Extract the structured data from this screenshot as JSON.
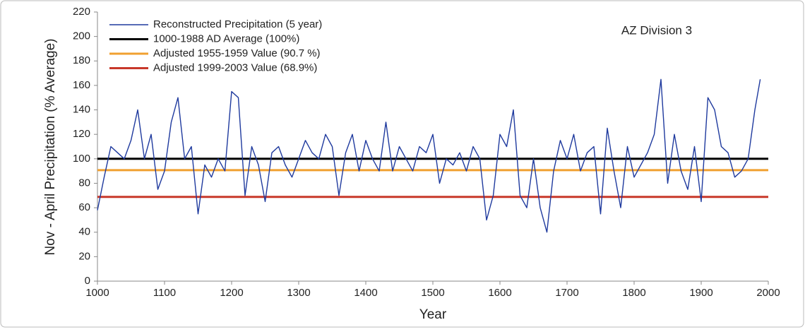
{
  "chart_data": {
    "type": "line",
    "annotation": "AZ Division 3",
    "xlabel": "Year",
    "ylabel": "Nov - April Precipitation (% Average)",
    "xlim": [
      1000,
      2000
    ],
    "xticks": [
      1000,
      1100,
      1200,
      1300,
      1400,
      1500,
      1600,
      1700,
      1800,
      1900,
      2000
    ],
    "ylim": [
      0,
      220
    ],
    "yticks": [
      0,
      20,
      40,
      60,
      80,
      100,
      120,
      140,
      160,
      180,
      200,
      220
    ],
    "legend": "upper left",
    "series": [
      {
        "name": "Reconstructed Precipitation (5 year)",
        "color": "#1f3a9e",
        "width": 1.4,
        "x": [
          1000,
          1010,
          1020,
          1030,
          1040,
          1050,
          1060,
          1070,
          1080,
          1090,
          1100,
          1110,
          1120,
          1130,
          1140,
          1150,
          1160,
          1170,
          1180,
          1190,
          1200,
          1210,
          1220,
          1230,
          1240,
          1250,
          1260,
          1270,
          1280,
          1290,
          1300,
          1310,
          1320,
          1330,
          1340,
          1350,
          1360,
          1370,
          1380,
          1390,
          1400,
          1410,
          1420,
          1430,
          1440,
          1450,
          1460,
          1470,
          1480,
          1490,
          1500,
          1510,
          1520,
          1530,
          1540,
          1550,
          1560,
          1570,
          1580,
          1590,
          1600,
          1610,
          1620,
          1630,
          1640,
          1650,
          1660,
          1670,
          1680,
          1690,
          1700,
          1710,
          1720,
          1730,
          1740,
          1750,
          1760,
          1770,
          1780,
          1790,
          1800,
          1810,
          1820,
          1830,
          1840,
          1850,
          1860,
          1870,
          1880,
          1890,
          1900,
          1910,
          1920,
          1930,
          1940,
          1950,
          1960,
          1970,
          1980,
          1988
        ],
        "values": [
          58,
          85,
          110,
          105,
          100,
          115,
          140,
          100,
          120,
          75,
          90,
          130,
          150,
          100,
          110,
          55,
          95,
          85,
          100,
          90,
          155,
          150,
          70,
          110,
          95,
          65,
          105,
          110,
          95,
          85,
          100,
          115,
          105,
          100,
          120,
          110,
          70,
          105,
          120,
          90,
          115,
          100,
          90,
          130,
          90,
          110,
          100,
          90,
          110,
          105,
          120,
          80,
          100,
          95,
          105,
          90,
          110,
          100,
          50,
          70,
          120,
          110,
          140,
          70,
          60,
          100,
          60,
          40,
          90,
          115,
          100,
          120,
          90,
          105,
          110,
          55,
          125,
          90,
          60,
          110,
          85,
          95,
          105,
          120,
          165,
          80,
          120,
          90,
          75,
          110,
          65,
          150,
          140,
          110,
          105,
          85,
          90,
          100,
          140,
          165
        ]
      },
      {
        "name": "1000-1988 AD Average (100%)",
        "color": "#000000",
        "width": 3,
        "x": [
          1000,
          2000
        ],
        "values": [
          100,
          100
        ]
      },
      {
        "name": "Adjusted 1955-1959 Value (90.7 %)",
        "color": "#f0a030",
        "width": 3,
        "x": [
          1000,
          2000
        ],
        "values": [
          90.7,
          90.7
        ]
      },
      {
        "name": "Adjusted 1999-2003 Value (68.9%)",
        "color": "#c8382a",
        "width": 3,
        "x": [
          1000,
          2000
        ],
        "values": [
          68.9,
          68.9
        ]
      }
    ]
  }
}
